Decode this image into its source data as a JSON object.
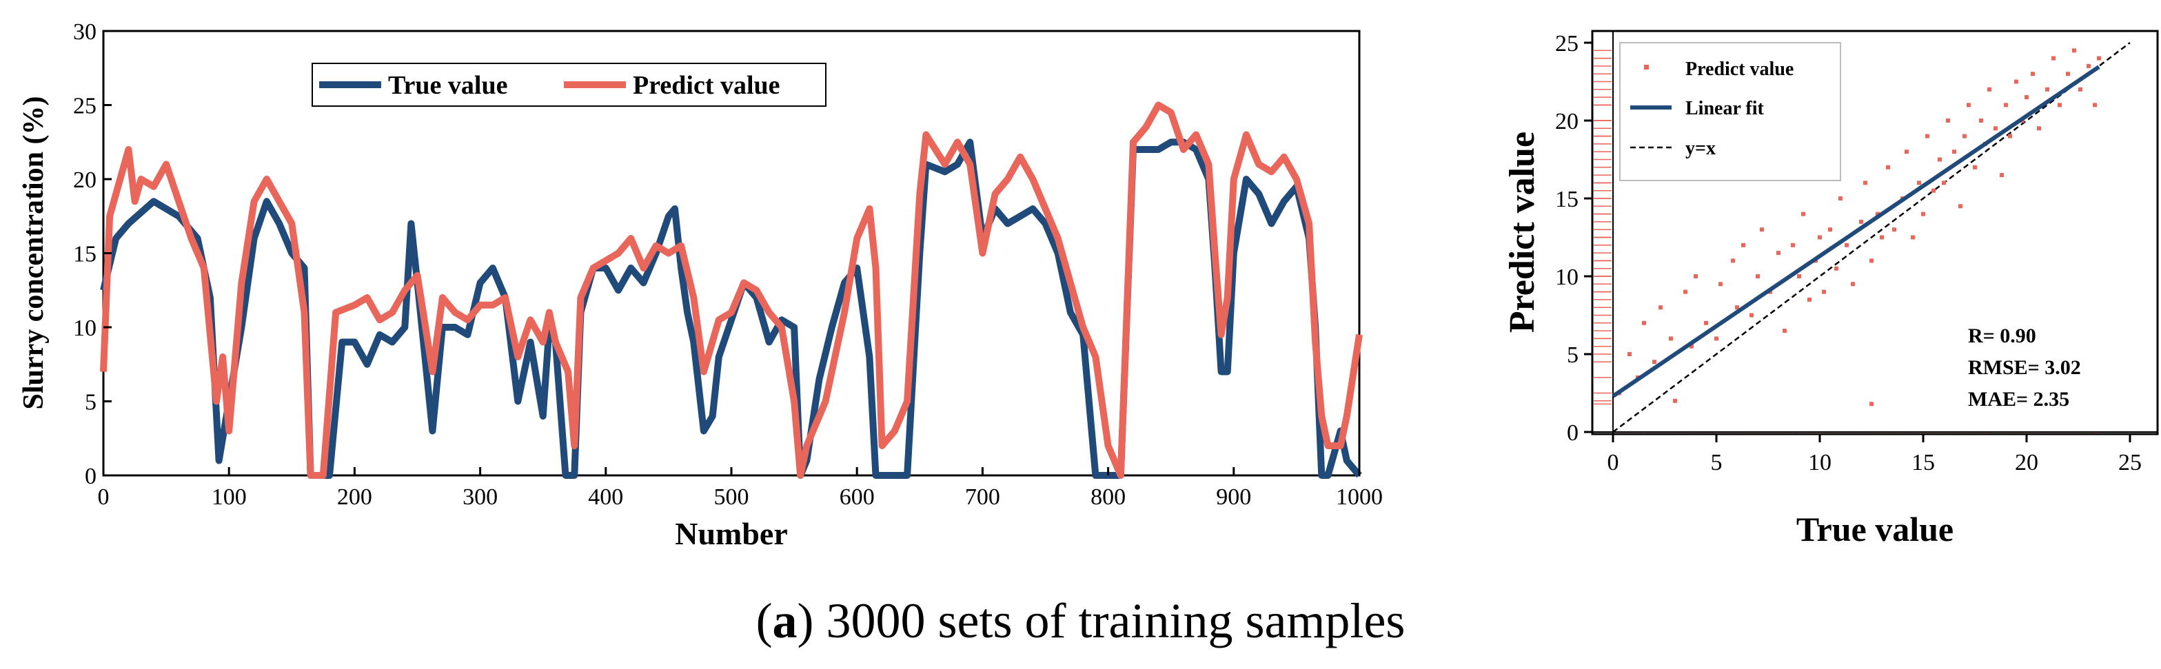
{
  "colors": {
    "true": "#1f4a7a",
    "predict": "#e8665a",
    "axis": "#000000"
  },
  "caption": {
    "label": "a",
    "text": "3000 sets of training samples"
  },
  "chart_data": [
    {
      "type": "line",
      "title": "",
      "xlabel": "Number",
      "ylabel": "Slurry concentration  (%)",
      "xlim": [
        0,
        1000
      ],
      "ylim": [
        0,
        30
      ],
      "xticks": [
        0,
        100,
        200,
        300,
        400,
        500,
        600,
        700,
        800,
        900,
        1000
      ],
      "yticks": [
        0,
        5,
        10,
        15,
        20,
        25,
        30
      ],
      "legend": {
        "position": "top-left",
        "entries": [
          "True value",
          "Predict value"
        ]
      },
      "series": [
        {
          "name": "True value",
          "x": [
            0,
            10,
            20,
            40,
            60,
            75,
            85,
            92,
            100,
            110,
            120,
            130,
            140,
            150,
            160,
            165,
            180,
            190,
            200,
            210,
            220,
            230,
            240,
            245,
            250,
            262,
            270,
            280,
            290,
            300,
            310,
            320,
            330,
            340,
            350,
            355,
            360,
            368,
            375,
            380,
            390,
            400,
            410,
            420,
            430,
            440,
            450,
            455,
            460,
            465,
            470,
            478,
            485,
            490,
            500,
            510,
            520,
            530,
            540,
            550,
            555,
            560,
            570,
            580,
            590,
            600,
            610,
            615,
            620,
            630,
            640,
            650,
            655,
            670,
            680,
            690,
            700,
            710,
            720,
            730,
            740,
            750,
            760,
            770,
            780,
            790,
            795,
            810,
            820,
            830,
            840,
            850,
            860,
            870,
            880,
            885,
            890,
            895,
            900,
            910,
            920,
            930,
            940,
            950,
            960,
            965,
            970,
            975,
            985,
            990,
            1000
          ],
          "values": [
            12.5,
            16,
            17,
            18.5,
            17.5,
            16,
            12,
            1,
            5,
            10,
            16,
            18.5,
            17,
            15,
            14,
            0,
            0,
            9,
            9,
            7.5,
            9.5,
            9,
            10,
            17,
            13,
            3,
            10,
            10,
            9.5,
            13,
            14,
            12,
            5,
            9,
            4,
            10,
            9,
            0,
            0,
            11,
            14,
            14,
            12.5,
            14,
            13,
            15,
            17.5,
            18,
            14,
            11,
            9,
            3,
            4,
            8,
            10.5,
            13,
            12,
            9,
            10.5,
            10,
            0,
            1,
            6.5,
            10,
            13,
            14,
            8,
            0,
            0,
            0,
            0,
            15,
            21,
            20.5,
            21,
            22.5,
            16,
            18,
            17,
            17.5,
            18,
            17,
            15,
            11,
            9.5,
            0,
            0,
            0,
            22,
            22,
            22,
            22.5,
            22.5,
            22,
            20,
            14,
            7,
            7,
            15,
            20,
            19,
            17,
            18.5,
            19.5,
            16,
            10,
            0,
            0,
            3,
            1,
            0
          ]
        },
        {
          "name": "Predict value",
          "x": [
            0,
            5,
            10,
            20,
            25,
            30,
            40,
            50,
            60,
            70,
            80,
            90,
            95,
            100,
            110,
            120,
            130,
            140,
            150,
            160,
            165,
            175,
            185,
            200,
            210,
            220,
            230,
            240,
            250,
            262,
            270,
            280,
            290,
            300,
            310,
            320,
            330,
            340,
            350,
            355,
            360,
            370,
            375,
            380,
            390,
            400,
            410,
            420,
            430,
            440,
            450,
            460,
            470,
            478,
            490,
            500,
            510,
            520,
            530,
            540,
            550,
            555,
            560,
            575,
            590,
            600,
            610,
            615,
            620,
            630,
            640,
            650,
            655,
            670,
            680,
            690,
            700,
            710,
            720,
            730,
            740,
            750,
            760,
            770,
            780,
            790,
            800,
            810,
            820,
            830,
            840,
            850,
            860,
            870,
            880,
            885,
            890,
            895,
            900,
            910,
            920,
            930,
            940,
            950,
            960,
            965,
            970,
            975,
            985,
            990,
            1000
          ],
          "values": [
            7,
            17.5,
            19,
            22,
            18.5,
            20,
            19.5,
            21,
            18.5,
            16,
            14,
            5,
            8,
            3,
            13,
            18.5,
            20,
            18.5,
            17,
            11,
            0,
            0,
            11,
            11.5,
            12,
            10.5,
            11,
            12.5,
            13.5,
            7,
            12,
            11,
            10.5,
            11.5,
            11.5,
            12,
            8,
            10.5,
            9,
            11,
            9,
            7,
            2,
            12,
            14,
            14.5,
            15,
            16,
            14,
            15.5,
            15,
            15.5,
            12,
            7,
            10.5,
            11,
            13,
            12.5,
            11,
            10,
            5,
            0,
            2,
            5,
            11,
            16,
            18,
            14,
            2,
            3,
            5,
            19,
            23,
            21,
            22.5,
            21,
            15,
            19,
            20,
            21.5,
            20,
            18,
            16,
            13,
            10,
            8,
            2,
            0,
            22.5,
            23.5,
            25,
            24.5,
            22,
            23,
            21,
            15,
            9.5,
            12,
            20,
            23,
            21,
            20.5,
            21.5,
            20,
            17,
            9,
            4,
            2,
            2,
            4,
            9.5
          ]
        }
      ]
    },
    {
      "type": "scatter",
      "title": "",
      "xlabel": "True value",
      "ylabel": "Predict value",
      "xlim": [
        0,
        25
      ],
      "ylim": [
        0,
        25
      ],
      "xticks": [
        0,
        5,
        10,
        15,
        20,
        25
      ],
      "yticks": [
        0,
        5,
        10,
        15,
        20,
        25
      ],
      "legend": {
        "position": "top-left",
        "entries": [
          "Predict value",
          "Linear fit",
          "y=x"
        ]
      },
      "points": [
        [
          0.3,
          2.5
        ],
        [
          0.8,
          5
        ],
        [
          1.2,
          3.5
        ],
        [
          1.5,
          7
        ],
        [
          2,
          4.5
        ],
        [
          2.3,
          8
        ],
        [
          2.8,
          6
        ],
        [
          3,
          2
        ],
        [
          3.5,
          9
        ],
        [
          3.8,
          5.5
        ],
        [
          4,
          10
        ],
        [
          4.5,
          7
        ],
        [
          5,
          6
        ],
        [
          5.2,
          9.5
        ],
        [
          5.8,
          11
        ],
        [
          6,
          8
        ],
        [
          6.3,
          12
        ],
        [
          6.7,
          7.5
        ],
        [
          7,
          10
        ],
        [
          7.2,
          13
        ],
        [
          7.6,
          9
        ],
        [
          8,
          11.5
        ],
        [
          8.3,
          6.5
        ],
        [
          8.7,
          12
        ],
        [
          9,
          10
        ],
        [
          9.2,
          14
        ],
        [
          9.5,
          8.5
        ],
        [
          9.8,
          11
        ],
        [
          10,
          12.5
        ],
        [
          10.2,
          9
        ],
        [
          10.5,
          13
        ],
        [
          10.8,
          10.5
        ],
        [
          11,
          15
        ],
        [
          11.3,
          12
        ],
        [
          11.6,
          9.5
        ],
        [
          12,
          13.5
        ],
        [
          12.2,
          16
        ],
        [
          12.5,
          11
        ],
        [
          12.5,
          1.8
        ],
        [
          12.8,
          14
        ],
        [
          13,
          12.5
        ],
        [
          13.3,
          17
        ],
        [
          13.6,
          13
        ],
        [
          14,
          15
        ],
        [
          14.2,
          18
        ],
        [
          14.5,
          12.5
        ],
        [
          14.8,
          16
        ],
        [
          15,
          14
        ],
        [
          15.2,
          19
        ],
        [
          15.5,
          15.5
        ],
        [
          15.8,
          17.5
        ],
        [
          16,
          16
        ],
        [
          16.2,
          20
        ],
        [
          16.5,
          18
        ],
        [
          16.8,
          14.5
        ],
        [
          17,
          19
        ],
        [
          17.2,
          21
        ],
        [
          17.5,
          17
        ],
        [
          17.8,
          20
        ],
        [
          18,
          18.5
        ],
        [
          18.2,
          22
        ],
        [
          18.5,
          19.5
        ],
        [
          18.8,
          16.5
        ],
        [
          19,
          21
        ],
        [
          19.2,
          19
        ],
        [
          19.5,
          22.5
        ],
        [
          19.8,
          20
        ],
        [
          20,
          21.5
        ],
        [
          20.3,
          23
        ],
        [
          20.6,
          19.5
        ],
        [
          21,
          22
        ],
        [
          21.3,
          24
        ],
        [
          21.6,
          21
        ],
        [
          22,
          23
        ],
        [
          22.3,
          24.5
        ],
        [
          22.6,
          22
        ],
        [
          23,
          23.5
        ],
        [
          23.3,
          21
        ],
        [
          23.5,
          24
        ]
      ],
      "fit": {
        "slope": 0.9,
        "intercept": 2.3,
        "x_range": [
          0,
          23.5
        ]
      },
      "stats": {
        "r": "R= 0.90",
        "rmse": "RMSE= 3.02",
        "mae": "MAE= 2.35"
      }
    }
  ]
}
